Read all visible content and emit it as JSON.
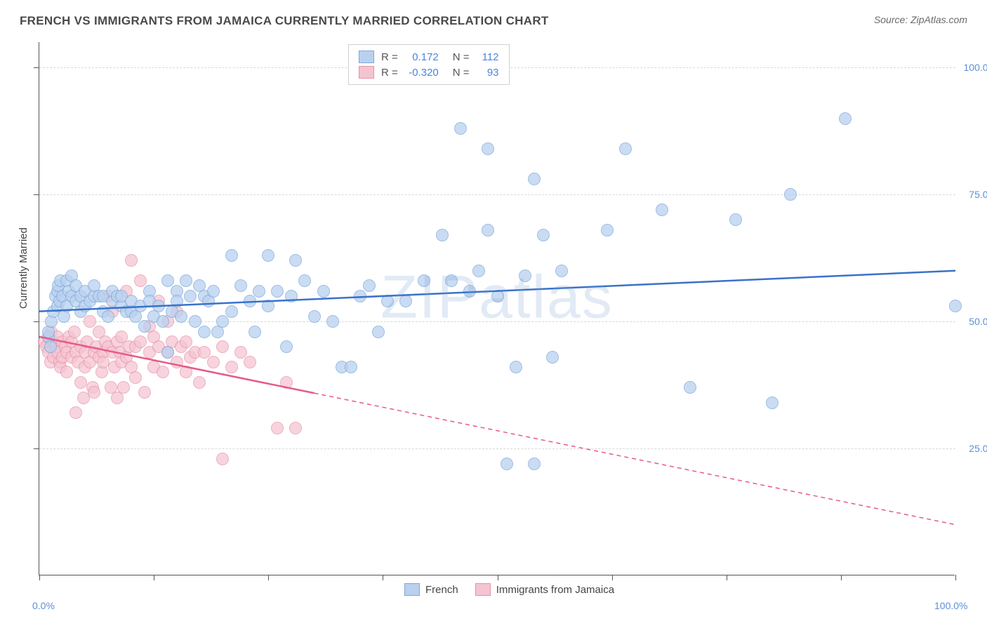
{
  "title": "FRENCH VS IMMIGRANTS FROM JAMAICA CURRENTLY MARRIED CORRELATION CHART",
  "source_label": "Source: ",
  "source_name": "ZipAtlas.com",
  "watermark": "ZIPatlas",
  "y_axis_title": "Currently Married",
  "chart": {
    "type": "scatter",
    "xlim": [
      0,
      100
    ],
    "ylim": [
      0,
      105
    ],
    "x_axis_labels": [
      {
        "pos": 0.0,
        "text": "0.0%"
      },
      {
        "pos": 100.0,
        "text": "100.0%"
      }
    ],
    "y_gridlines": [
      25,
      50,
      75,
      100
    ],
    "y_axis_labels": [
      {
        "pos": 25,
        "text": "25.0%"
      },
      {
        "pos": 50,
        "text": "50.0%"
      },
      {
        "pos": 75,
        "text": "75.0%"
      },
      {
        "pos": 100,
        "text": "100.0%"
      }
    ],
    "x_ticks": [
      0,
      12.5,
      25,
      37.5,
      50,
      62.5,
      75,
      87.5,
      100
    ],
    "background_color": "#ffffff",
    "grid_color": "#d8d8d8",
    "series": [
      {
        "name": "French",
        "fill": "#b9d1ef",
        "stroke": "#7ea8da",
        "line_color": "#3a72c9",
        "marker_radius": 9,
        "opacity": 0.75,
        "regression": {
          "x1": 0,
          "y1": 52,
          "x2": 100,
          "y2": 60,
          "dash_from_x": null
        },
        "stats": {
          "R": "0.172",
          "N": "112"
        },
        "points": [
          [
            1,
            47
          ],
          [
            1,
            48
          ],
          [
            1.2,
            45
          ],
          [
            1.3,
            50
          ],
          [
            1.5,
            52
          ],
          [
            1.8,
            55
          ],
          [
            2,
            53
          ],
          [
            2,
            56
          ],
          [
            2.1,
            57
          ],
          [
            2.2,
            54
          ],
          [
            2.3,
            58
          ],
          [
            2.5,
            55
          ],
          [
            2.7,
            51
          ],
          [
            3,
            53
          ],
          [
            3,
            58
          ],
          [
            3.2,
            56
          ],
          [
            3.5,
            55
          ],
          [
            3.5,
            59
          ],
          [
            4,
            54
          ],
          [
            4,
            57
          ],
          [
            4.5,
            55
          ],
          [
            4.5,
            52
          ],
          [
            5,
            56
          ],
          [
            5,
            53
          ],
          [
            5.5,
            54
          ],
          [
            6,
            55
          ],
          [
            6,
            57
          ],
          [
            6.5,
            55
          ],
          [
            7,
            55
          ],
          [
            7,
            52
          ],
          [
            7.5,
            51
          ],
          [
            8,
            54
          ],
          [
            8,
            56
          ],
          [
            8.5,
            55
          ],
          [
            9,
            53
          ],
          [
            9,
            55
          ],
          [
            9.5,
            52
          ],
          [
            10,
            54
          ],
          [
            10,
            52
          ],
          [
            10.5,
            51
          ],
          [
            11,
            53
          ],
          [
            11.5,
            49
          ],
          [
            12,
            56
          ],
          [
            12,
            54
          ],
          [
            12.5,
            51
          ],
          [
            13,
            53
          ],
          [
            13.5,
            50
          ],
          [
            14,
            44
          ],
          [
            14,
            58
          ],
          [
            14.5,
            52
          ],
          [
            15,
            56
          ],
          [
            15,
            54
          ],
          [
            15.5,
            51
          ],
          [
            16,
            58
          ],
          [
            16.5,
            55
          ],
          [
            17,
            50
          ],
          [
            17.5,
            57
          ],
          [
            18,
            55
          ],
          [
            18,
            48
          ],
          [
            18.5,
            54
          ],
          [
            19,
            56
          ],
          [
            19.5,
            48
          ],
          [
            20,
            50
          ],
          [
            21,
            63
          ],
          [
            21,
            52
          ],
          [
            22,
            57
          ],
          [
            23,
            54
          ],
          [
            23.5,
            48
          ],
          [
            24,
            56
          ],
          [
            25,
            63
          ],
          [
            25,
            53
          ],
          [
            26,
            56
          ],
          [
            27,
            45
          ],
          [
            27.5,
            55
          ],
          [
            28,
            62
          ],
          [
            29,
            58
          ],
          [
            30,
            51
          ],
          [
            31,
            56
          ],
          [
            32,
            50
          ],
          [
            33,
            41
          ],
          [
            34,
            41
          ],
          [
            35,
            55
          ],
          [
            36,
            57
          ],
          [
            37,
            48
          ],
          [
            38,
            54
          ],
          [
            40,
            54
          ],
          [
            42,
            58
          ],
          [
            44,
            67
          ],
          [
            45,
            58
          ],
          [
            46,
            88
          ],
          [
            47,
            56
          ],
          [
            48,
            60
          ],
          [
            49,
            84
          ],
          [
            49,
            68
          ],
          [
            50,
            55
          ],
          [
            51,
            22
          ],
          [
            52,
            41
          ],
          [
            53,
            59
          ],
          [
            54,
            22
          ],
          [
            54,
            78
          ],
          [
            55,
            67
          ],
          [
            56,
            43
          ],
          [
            57,
            60
          ],
          [
            62,
            68
          ],
          [
            64,
            84
          ],
          [
            68,
            72
          ],
          [
            71,
            37
          ],
          [
            76,
            70
          ],
          [
            80,
            34
          ],
          [
            82,
            75
          ],
          [
            88,
            90
          ],
          [
            100,
            53
          ]
        ]
      },
      {
        "name": "Immigrants from Jamaica",
        "fill": "#f5c4d1",
        "stroke": "#e890aa",
        "line_color": "#e65a8a",
        "marker_radius": 9,
        "opacity": 0.72,
        "regression": {
          "x1": 0,
          "y1": 47,
          "x2": 100,
          "y2": 10,
          "dash_from_x": 30
        },
        "stats": {
          "R": "-0.320",
          "N": "93"
        },
        "points": [
          [
            0.5,
            46
          ],
          [
            0.8,
            45
          ],
          [
            1,
            44
          ],
          [
            1,
            47
          ],
          [
            1.2,
            42
          ],
          [
            1.3,
            48
          ],
          [
            1.5,
            46
          ],
          [
            1.5,
            43
          ],
          [
            1.8,
            45
          ],
          [
            2,
            44
          ],
          [
            2,
            47
          ],
          [
            2.2,
            42
          ],
          [
            2.3,
            41
          ],
          [
            2.5,
            46
          ],
          [
            2.5,
            43
          ],
          [
            2.8,
            45
          ],
          [
            3,
            44
          ],
          [
            3,
            40
          ],
          [
            3.2,
            47
          ],
          [
            3.5,
            43
          ],
          [
            3.5,
            46
          ],
          [
            3.8,
            48
          ],
          [
            4,
            44
          ],
          [
            4,
            32
          ],
          [
            4.2,
            42
          ],
          [
            4.5,
            45
          ],
          [
            4.5,
            38
          ],
          [
            4.8,
            35
          ],
          [
            5,
            44
          ],
          [
            5,
            41
          ],
          [
            5.2,
            46
          ],
          [
            5.5,
            42
          ],
          [
            5.5,
            50
          ],
          [
            5.8,
            37
          ],
          [
            6,
            44
          ],
          [
            6,
            36
          ],
          [
            6.2,
            45
          ],
          [
            6.5,
            43
          ],
          [
            6.5,
            48
          ],
          [
            6.8,
            40
          ],
          [
            7,
            44
          ],
          [
            7,
            42
          ],
          [
            7.2,
            46
          ],
          [
            7.5,
            45
          ],
          [
            7.5,
            55
          ],
          [
            7.8,
            37
          ],
          [
            8,
            44
          ],
          [
            8,
            52
          ],
          [
            8.2,
            41
          ],
          [
            8.5,
            46
          ],
          [
            8.5,
            35
          ],
          [
            8.8,
            44
          ],
          [
            9,
            42
          ],
          [
            9,
            47
          ],
          [
            9.2,
            37
          ],
          [
            9.5,
            56
          ],
          [
            9.5,
            43
          ],
          [
            9.8,
            45
          ],
          [
            10,
            41
          ],
          [
            10,
            62
          ],
          [
            10.5,
            45
          ],
          [
            10.5,
            39
          ],
          [
            11,
            58
          ],
          [
            11,
            46
          ],
          [
            11.5,
            36
          ],
          [
            12,
            44
          ],
          [
            12,
            49
          ],
          [
            12.5,
            47
          ],
          [
            12.5,
            41
          ],
          [
            13,
            45
          ],
          [
            13,
            54
          ],
          [
            13.5,
            40
          ],
          [
            14,
            44
          ],
          [
            14,
            50
          ],
          [
            14.5,
            46
          ],
          [
            15,
            42
          ],
          [
            15,
            52
          ],
          [
            15.5,
            45
          ],
          [
            16,
            40
          ],
          [
            16,
            46
          ],
          [
            16.5,
            43
          ],
          [
            17,
            44
          ],
          [
            17.5,
            38
          ],
          [
            18,
            44
          ],
          [
            19,
            42
          ],
          [
            20,
            45
          ],
          [
            20,
            23
          ],
          [
            21,
            41
          ],
          [
            22,
            44
          ],
          [
            23,
            42
          ],
          [
            26,
            29
          ],
          [
            27,
            38
          ],
          [
            28,
            29
          ]
        ]
      }
    ]
  },
  "legend_top": {
    "rows": [
      {
        "swatch_fill": "#b9d1ef",
        "swatch_stroke": "#7ea8da",
        "r_label": "R =",
        "r_val": "0.172",
        "n_label": "N =",
        "n_val": "112"
      },
      {
        "swatch_fill": "#f5c4d1",
        "swatch_stroke": "#e890aa",
        "r_label": "R =",
        "r_val": "-0.320",
        "n_label": "N =",
        "n_val": "93"
      }
    ]
  },
  "legend_bottom": [
    {
      "swatch_fill": "#b9d1ef",
      "swatch_stroke": "#7ea8da",
      "label": "French"
    },
    {
      "swatch_fill": "#f5c4d1",
      "swatch_stroke": "#e890aa",
      "label": "Immigrants from Jamaica"
    }
  ]
}
